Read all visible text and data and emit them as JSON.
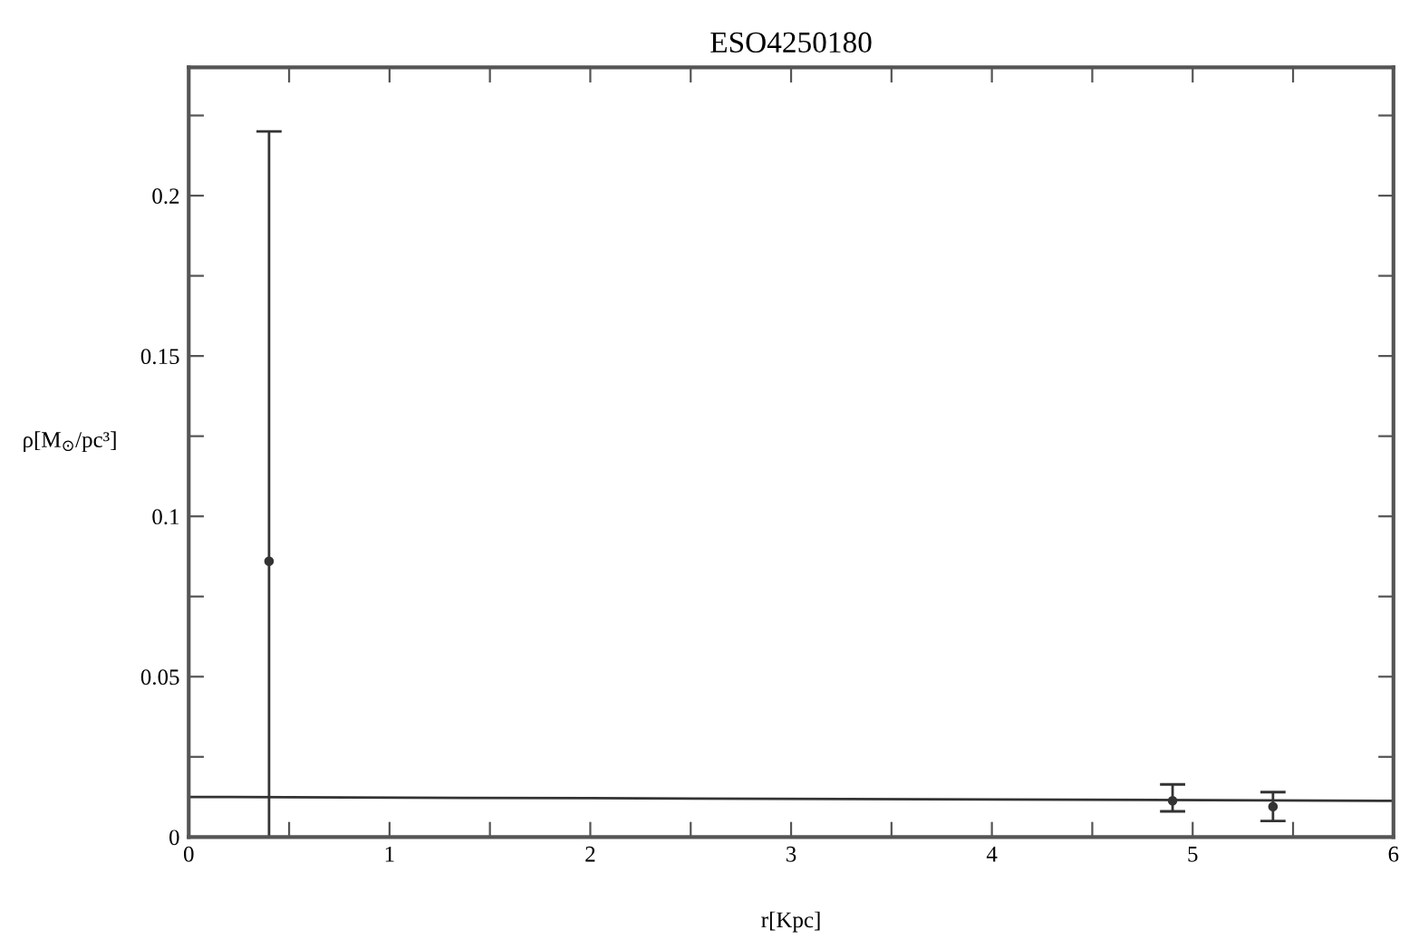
{
  "chart_data": {
    "type": "scatter",
    "title": "ESO4250180",
    "xlabel": "r[Kpc]",
    "ylabel": "ρ[M$_{⊙}$/pc³]",
    "xlim": [
      0,
      6
    ],
    "ylim": [
      0,
      0.24
    ],
    "xticks": [
      0,
      {
        "value": 0.5,
        "label": null
      },
      1,
      {
        "value": 1.5,
        "label": null
      },
      2,
      {
        "value": 2.5,
        "label": null
      },
      3,
      {
        "value": 3.5,
        "label": null
      },
      4,
      {
        "value": 4.5,
        "label": null
      },
      5,
      {
        "value": 5.5,
        "label": null
      },
      6
    ],
    "yticks": [
      0,
      {
        "value": 0.025,
        "label": null
      },
      0.05,
      {
        "value": 0.075,
        "label": null
      },
      0.1,
      {
        "value": 0.125,
        "label": null
      },
      0.15,
      {
        "value": 0.175,
        "label": null
      },
      0.2,
      {
        "value": 0.225,
        "label": null
      }
    ],
    "grid": false,
    "legend": false,
    "series": [
      {
        "color": "#333333",
        "marker": "circle",
        "x": [
          0.4,
          4.9,
          5.4
        ],
        "values": [
          0.086,
          0.0113,
          0.0095
        ],
        "errors": [
          [
            0,
            0.22
          ],
          [
            0.008,
            0.0164
          ],
          [
            0.005,
            0.014
          ]
        ]
      },
      {
        "type": "line",
        "color": "#333333",
        "marker": "none",
        "line_style": "solid",
        "x": [
          0,
          2,
          4,
          6
        ],
        "values": [
          0.0125,
          0.0121,
          0.0117,
          0.0113
        ]
      }
    ]
  }
}
